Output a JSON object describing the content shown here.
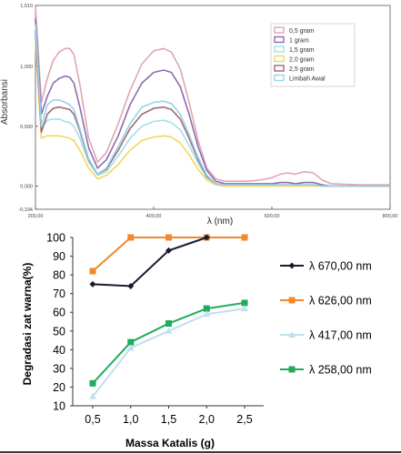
{
  "chart_data": [
    {
      "type": "line",
      "title": "",
      "xlabel": "λ (nm)",
      "ylabel": "Absorbansi",
      "xlim": [
        200,
        800
      ],
      "ylim": [
        -0.194,
        1.51
      ],
      "x_ticks": [
        "200,00",
        "400,00",
        "600,00",
        "800,00"
      ],
      "y_ticks": [
        {
          "value": -0.194,
          "label": "-0,194"
        },
        {
          "value": 0.0,
          "label": "0,000"
        },
        {
          "value": 0.5,
          "label": "0,500"
        },
        {
          "value": 1.0,
          "label": "1,000"
        },
        {
          "value": 1.51,
          "label": "1,510"
        }
      ],
      "grid": false,
      "legend": "top-right",
      "x": [
        200,
        210,
        220,
        230,
        240,
        250,
        258,
        265,
        275,
        290,
        305,
        320,
        340,
        360,
        380,
        400,
        417,
        430,
        445,
        460,
        475,
        490,
        505,
        520,
        540,
        560,
        580,
        600,
        615,
        626,
        640,
        655,
        670,
        685,
        700,
        750,
        800
      ],
      "series": [
        {
          "name": "0,5 gram",
          "color": "#e0a6b4",
          "values": [
            1.5,
            0.7,
            0.9,
            1.05,
            1.12,
            1.15,
            1.15,
            1.1,
            0.85,
            0.4,
            0.2,
            0.28,
            0.52,
            0.8,
            1.02,
            1.13,
            1.15,
            1.12,
            0.98,
            0.7,
            0.38,
            0.15,
            0.06,
            0.04,
            0.04,
            0.04,
            0.05,
            0.07,
            0.1,
            0.11,
            0.1,
            0.12,
            0.11,
            0.05,
            0.02,
            0.01,
            0.01
          ]
        },
        {
          "name": "1 gram",
          "color": "#8e6cb0",
          "values": [
            1.4,
            0.6,
            0.75,
            0.86,
            0.9,
            0.92,
            0.91,
            0.86,
            0.66,
            0.32,
            0.15,
            0.22,
            0.42,
            0.68,
            0.86,
            0.95,
            0.97,
            0.95,
            0.83,
            0.6,
            0.33,
            0.13,
            0.04,
            0.02,
            0.02,
            0.02,
            0.02,
            0.02,
            0.03,
            0.03,
            0.02,
            0.03,
            0.03,
            0.01,
            0.0,
            0.0,
            0.0
          ]
        },
        {
          "name": "1,5 gram",
          "color": "#a4e0e6",
          "values": [
            1.25,
            0.48,
            0.55,
            0.56,
            0.56,
            0.54,
            0.53,
            0.5,
            0.4,
            0.2,
            0.09,
            0.12,
            0.25,
            0.4,
            0.5,
            0.54,
            0.55,
            0.53,
            0.47,
            0.34,
            0.19,
            0.07,
            0.02,
            0.01,
            0.01,
            0.01,
            0.01,
            0.01,
            0.01,
            0.01,
            0.01,
            0.01,
            0.01,
            0.0,
            0.0,
            0.0,
            0.0
          ]
        },
        {
          "name": "2,0 gram",
          "color": "#f0d860",
          "values": [
            1.2,
            0.4,
            0.42,
            0.42,
            0.42,
            0.41,
            0.4,
            0.38,
            0.3,
            0.15,
            0.06,
            0.09,
            0.18,
            0.3,
            0.38,
            0.41,
            0.42,
            0.41,
            0.36,
            0.26,
            0.14,
            0.05,
            0.01,
            0.0,
            0.0,
            0.0,
            0.0,
            0.0,
            0.0,
            0.0,
            0.0,
            0.0,
            0.0,
            0.0,
            0.0,
            0.0,
            0.0
          ]
        },
        {
          "name": "2,5 gram",
          "color": "#a06878",
          "values": [
            1.3,
            0.45,
            0.6,
            0.65,
            0.66,
            0.65,
            0.64,
            0.6,
            0.46,
            0.22,
            0.1,
            0.14,
            0.3,
            0.48,
            0.6,
            0.65,
            0.66,
            0.64,
            0.56,
            0.4,
            0.22,
            0.08,
            0.02,
            0.01,
            0.01,
            0.01,
            0.01,
            0.01,
            0.01,
            0.01,
            0.01,
            0.01,
            0.01,
            0.0,
            0.0,
            0.0,
            0.0
          ]
        },
        {
          "name": "Limbah Awal",
          "color": "#98d4e8",
          "values": [
            1.35,
            0.5,
            0.68,
            0.72,
            0.72,
            0.7,
            0.68,
            0.64,
            0.48,
            0.23,
            0.1,
            0.15,
            0.33,
            0.52,
            0.66,
            0.7,
            0.71,
            0.69,
            0.6,
            0.43,
            0.24,
            0.09,
            0.02,
            0.01,
            0.01,
            0.01,
            0.01,
            0.01,
            0.01,
            0.01,
            0.01,
            0.01,
            0.01,
            0.0,
            0.0,
            0.0,
            0.0
          ]
        }
      ]
    },
    {
      "type": "line",
      "title": "",
      "xlabel": "Massa Katalis (g)",
      "ylabel": "Degradasi zat warna(%)",
      "categories": [
        "0,5",
        "1,0",
        "1,5",
        "2,0",
        "2,5"
      ],
      "ylim": [
        10,
        100
      ],
      "y_ticks": [
        10,
        20,
        30,
        40,
        50,
        60,
        70,
        80,
        90,
        100
      ],
      "grid": false,
      "legend": "right",
      "series": [
        {
          "name": "λ 670,00 nm",
          "color": "#1b1b2e",
          "marker": "diamond",
          "values": [
            75,
            74,
            93,
            100,
            null
          ]
        },
        {
          "name": "λ 626,00 nm",
          "color": "#f08a2a",
          "marker": "square",
          "values": [
            82,
            100,
            100,
            100,
            100
          ]
        },
        {
          "name": "λ 417,00 nm",
          "color": "#bfe0ee",
          "marker": "triangle",
          "values": [
            15,
            41,
            50,
            59,
            62
          ]
        },
        {
          "name": "λ 258,00 nm",
          "color": "#1fab5c",
          "marker": "square",
          "values": [
            22,
            44,
            54,
            62,
            65
          ]
        }
      ]
    }
  ]
}
